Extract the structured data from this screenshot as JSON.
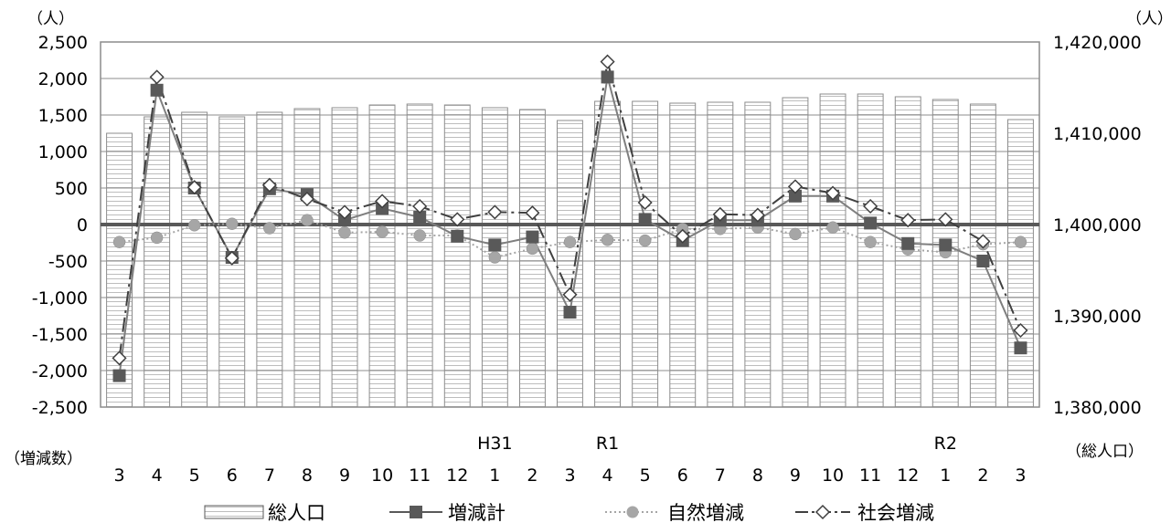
{
  "chart_data": {
    "type": "bar-line-combo",
    "title": "",
    "left_axis": {
      "unit": "（人）",
      "ylim": [
        -2500,
        2500
      ],
      "ticks": [
        "2,500",
        "2,000",
        "1,500",
        "1,000",
        "500",
        "0",
        "-500",
        "-1,000",
        "-1,500",
        "-2,000",
        "-2,500"
      ],
      "label": "（増減数）"
    },
    "right_axis": {
      "unit": "（人）",
      "ylim": [
        1380000,
        1420000
      ],
      "ticks": [
        "1,420,000",
        "1,410,000",
        "1,400,000",
        "1,390,000",
        "1,380,000"
      ],
      "label": "（総人口）"
    },
    "month_labels": [
      "3",
      "4",
      "5",
      "6",
      "7",
      "8",
      "9",
      "10",
      "11",
      "12",
      "1",
      "2",
      "3",
      "4",
      "5",
      "6",
      "7",
      "8",
      "9",
      "10",
      "11",
      "12",
      "1",
      "2",
      "3"
    ],
    "era_labels": [
      {
        "index": 10,
        "text": "H31"
      },
      {
        "index": 13,
        "text": "R1"
      },
      {
        "index": 22,
        "text": "R2"
      }
    ],
    "legend": [
      "総人口",
      "増減計",
      "自然増減",
      "社会増減"
    ],
    "series": [
      {
        "name": "総人口",
        "type": "bar",
        "axis": "right",
        "values": [
          1410000,
          1411800,
          1412300,
          1411800,
          1412300,
          1412700,
          1412800,
          1413100,
          1413200,
          1413100,
          1412800,
          1412600,
          1411400,
          1413500,
          1413500,
          1413300,
          1413400,
          1413400,
          1413900,
          1414300,
          1414300,
          1414000,
          1413700,
          1413200,
          1411500
        ]
      },
      {
        "name": "増減計",
        "type": "line",
        "axis": "left",
        "color": "#7f7f7f",
        "values": [
          -2070,
          1840,
          500,
          -450,
          490,
          410,
          60,
          220,
          100,
          -160,
          -280,
          -170,
          -1200,
          2020,
          70,
          -220,
          60,
          60,
          390,
          390,
          20,
          -260,
          -280,
          -500,
          -1690
        ]
      },
      {
        "name": "自然増減",
        "type": "line",
        "axis": "left",
        "color": "#a6a6a6",
        "values": [
          -240,
          -180,
          -10,
          10,
          -50,
          60,
          -110,
          -100,
          -150,
          -150,
          -450,
          -330,
          -240,
          -210,
          -220,
          -60,
          -60,
          -40,
          -130,
          -40,
          -240,
          -340,
          -380,
          -270,
          -240
        ]
      },
      {
        "name": "社会増減",
        "type": "line",
        "axis": "left",
        "color": "#404040",
        "values": [
          -1830,
          2020,
          510,
          -460,
          540,
          350,
          170,
          320,
          250,
          70,
          170,
          160,
          -960,
          2230,
          300,
          -160,
          140,
          130,
          520,
          430,
          250,
          60,
          70,
          -230,
          -1450
        ]
      }
    ]
  }
}
